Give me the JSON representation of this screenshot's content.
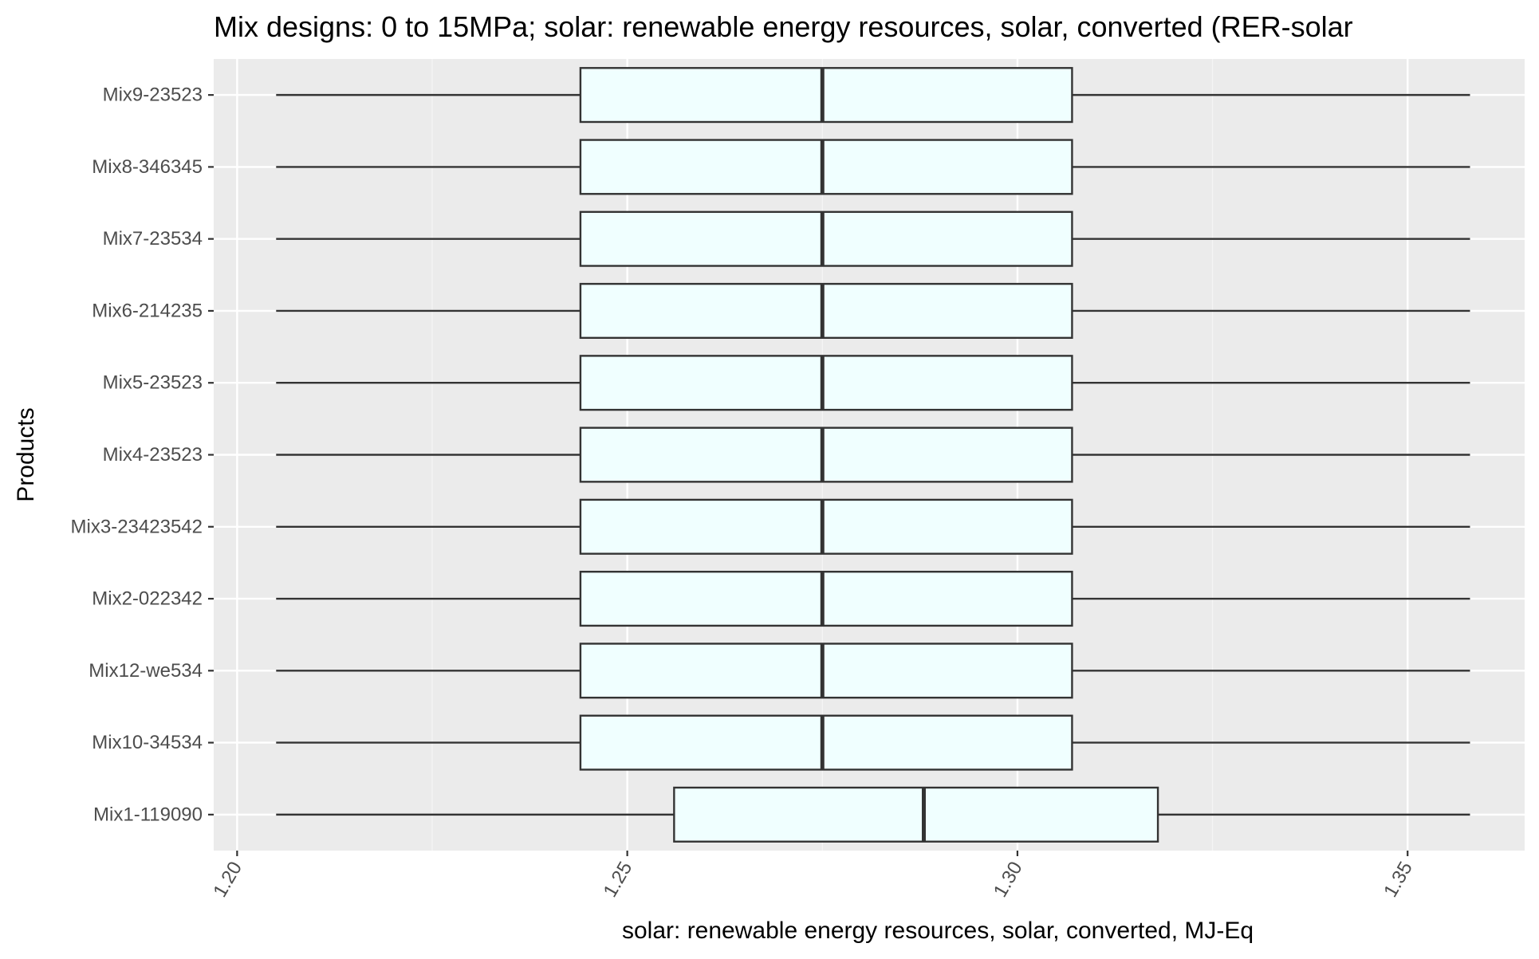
{
  "chart_data": {
    "type": "boxplot",
    "orientation": "horizontal",
    "title": "Mix designs: 0 to 15MPa; solar: renewable energy resources, solar, converted (RER-solar",
    "xlabel": "solar: renewable energy resources, solar, converted, MJ-Eq",
    "ylabel": "Products",
    "xlim": [
      1.197,
      1.365
    ],
    "x_ticks": [
      1.2,
      1.25,
      1.3,
      1.35
    ],
    "x_tick_labels": [
      "1.20",
      "1.25",
      "1.30",
      "1.35"
    ],
    "grid": true,
    "categories": [
      "Mix1-119090",
      "Mix10-34534",
      "Mix12-we534",
      "Mix2-022342",
      "Mix3-23423542",
      "Mix4-23523",
      "Mix5-23523",
      "Mix6-214235",
      "Mix7-23534",
      "Mix8-346345",
      "Mix9-23523"
    ],
    "series": [
      {
        "category": "Mix1-119090",
        "min": 1.205,
        "q1": 1.256,
        "median": 1.288,
        "q3": 1.318,
        "max": 1.358
      },
      {
        "category": "Mix10-34534",
        "min": 1.205,
        "q1": 1.244,
        "median": 1.275,
        "q3": 1.307,
        "max": 1.358
      },
      {
        "category": "Mix12-we534",
        "min": 1.205,
        "q1": 1.244,
        "median": 1.275,
        "q3": 1.307,
        "max": 1.358
      },
      {
        "category": "Mix2-022342",
        "min": 1.205,
        "q1": 1.244,
        "median": 1.275,
        "q3": 1.307,
        "max": 1.358
      },
      {
        "category": "Mix3-23423542",
        "min": 1.205,
        "q1": 1.244,
        "median": 1.275,
        "q3": 1.307,
        "max": 1.358
      },
      {
        "category": "Mix4-23523",
        "min": 1.205,
        "q1": 1.244,
        "median": 1.275,
        "q3": 1.307,
        "max": 1.358
      },
      {
        "category": "Mix5-23523",
        "min": 1.205,
        "q1": 1.244,
        "median": 1.275,
        "q3": 1.307,
        "max": 1.358
      },
      {
        "category": "Mix6-214235",
        "min": 1.205,
        "q1": 1.244,
        "median": 1.275,
        "q3": 1.307,
        "max": 1.358
      },
      {
        "category": "Mix7-23534",
        "min": 1.205,
        "q1": 1.244,
        "median": 1.275,
        "q3": 1.307,
        "max": 1.358
      },
      {
        "category": "Mix8-346345",
        "min": 1.205,
        "q1": 1.244,
        "median": 1.275,
        "q3": 1.307,
        "max": 1.358
      },
      {
        "category": "Mix9-23523",
        "min": 1.205,
        "q1": 1.244,
        "median": 1.275,
        "q3": 1.307,
        "max": 1.358
      }
    ],
    "colors": {
      "panel_background": "#ebebeb",
      "grid_major": "#ffffff",
      "grid_minor": "#f5f5f5",
      "box_fill": "#f0ffff",
      "box_stroke": "#333333",
      "text": "#000000",
      "tick_text": "#4d4d4d"
    }
  }
}
